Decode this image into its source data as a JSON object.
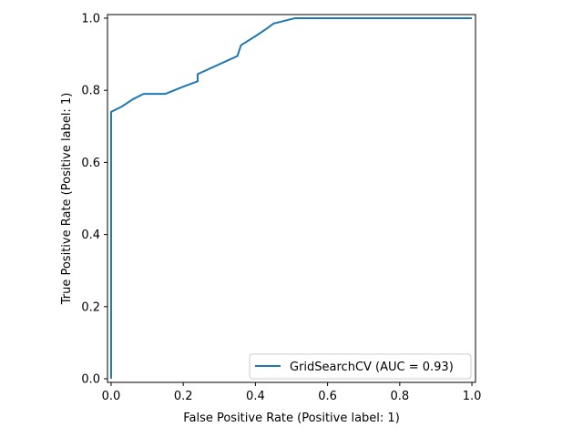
{
  "chart_data": {
    "type": "line",
    "title": "",
    "xlabel": "False Positive Rate (Positive label: 1)",
    "ylabel": "True Positive Rate (Positive label: 1)",
    "xlim": [
      -0.01,
      1.01
    ],
    "ylim": [
      -0.01,
      1.01
    ],
    "xticks": [
      "0.0",
      "0.2",
      "0.4",
      "0.6",
      "0.8",
      "1.0"
    ],
    "yticks": [
      "0.0",
      "0.2",
      "0.4",
      "0.6",
      "0.8",
      "1.0"
    ],
    "grid": false,
    "legend_position": "lower-right",
    "series": [
      {
        "name": "GridSearchCV (AUC = 0.93)",
        "color": "#1f77b4",
        "x": [
          0.0,
          0.0,
          0.0,
          0.03,
          0.06,
          0.09,
          0.15,
          0.2,
          0.24,
          0.24,
          0.35,
          0.36,
          0.4,
          0.43,
          0.45,
          0.47,
          0.51,
          0.52,
          1.0
        ],
        "y": [
          0.0,
          0.0,
          0.74,
          0.755,
          0.775,
          0.79,
          0.79,
          0.81,
          0.825,
          0.845,
          0.895,
          0.925,
          0.95,
          0.97,
          0.985,
          0.99,
          1.0,
          1.0,
          1.0
        ]
      }
    ]
  }
}
